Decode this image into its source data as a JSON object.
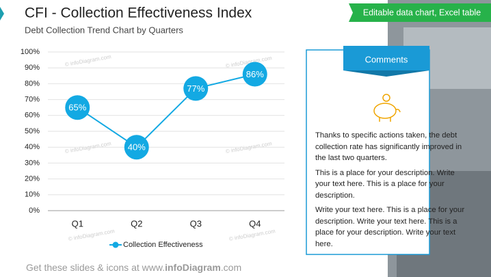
{
  "chart_data": {
    "type": "line",
    "title": "CFI - Collection Effectiveness Index",
    "subtitle": "Debt Collection Trend Chart by Quarters",
    "categories": [
      "Q1",
      "Q2",
      "Q3",
      "Q4"
    ],
    "series": [
      {
        "name": "Collection Effectiveness",
        "color": "#13a9e3",
        "values": [
          65,
          40,
          77,
          86
        ],
        "value_labels": [
          "65%",
          "40%",
          "77%",
          "86%"
        ]
      }
    ],
    "ylim": [
      0,
      100
    ],
    "yticks": [
      {
        "value": 0,
        "label": "0%"
      },
      {
        "value": 10,
        "label": "10%"
      },
      {
        "value": 20,
        "label": "20%"
      },
      {
        "value": 30,
        "label": "30%"
      },
      {
        "value": 40,
        "label": "40%"
      },
      {
        "value": 50,
        "label": "50%"
      },
      {
        "value": 60,
        "label": "60%"
      },
      {
        "value": 70,
        "label": "70%"
      },
      {
        "value": 80,
        "label": "80%"
      },
      {
        "value": 90,
        "label": "90%"
      },
      {
        "value": 100,
        "label": "100%"
      }
    ],
    "grid": true,
    "legend": "bottom"
  },
  "badge": "Editable data chart, Excel table",
  "comments": {
    "title": "Comments",
    "paragraphs": [
      "Thanks to specific actions taken, the debt collection rate has significantly improved in the last two quarters.",
      "This is a place for your description. Write your text here. This is a place for your description.",
      "Write your text here. This is a place for your description. Write your text here. This is a place for your description. Write your text here."
    ]
  },
  "watermark": "© infoDiagram.com",
  "footer": [
    "Get these slides & icons at www.",
    "infoDiagram",
    ".com"
  ]
}
